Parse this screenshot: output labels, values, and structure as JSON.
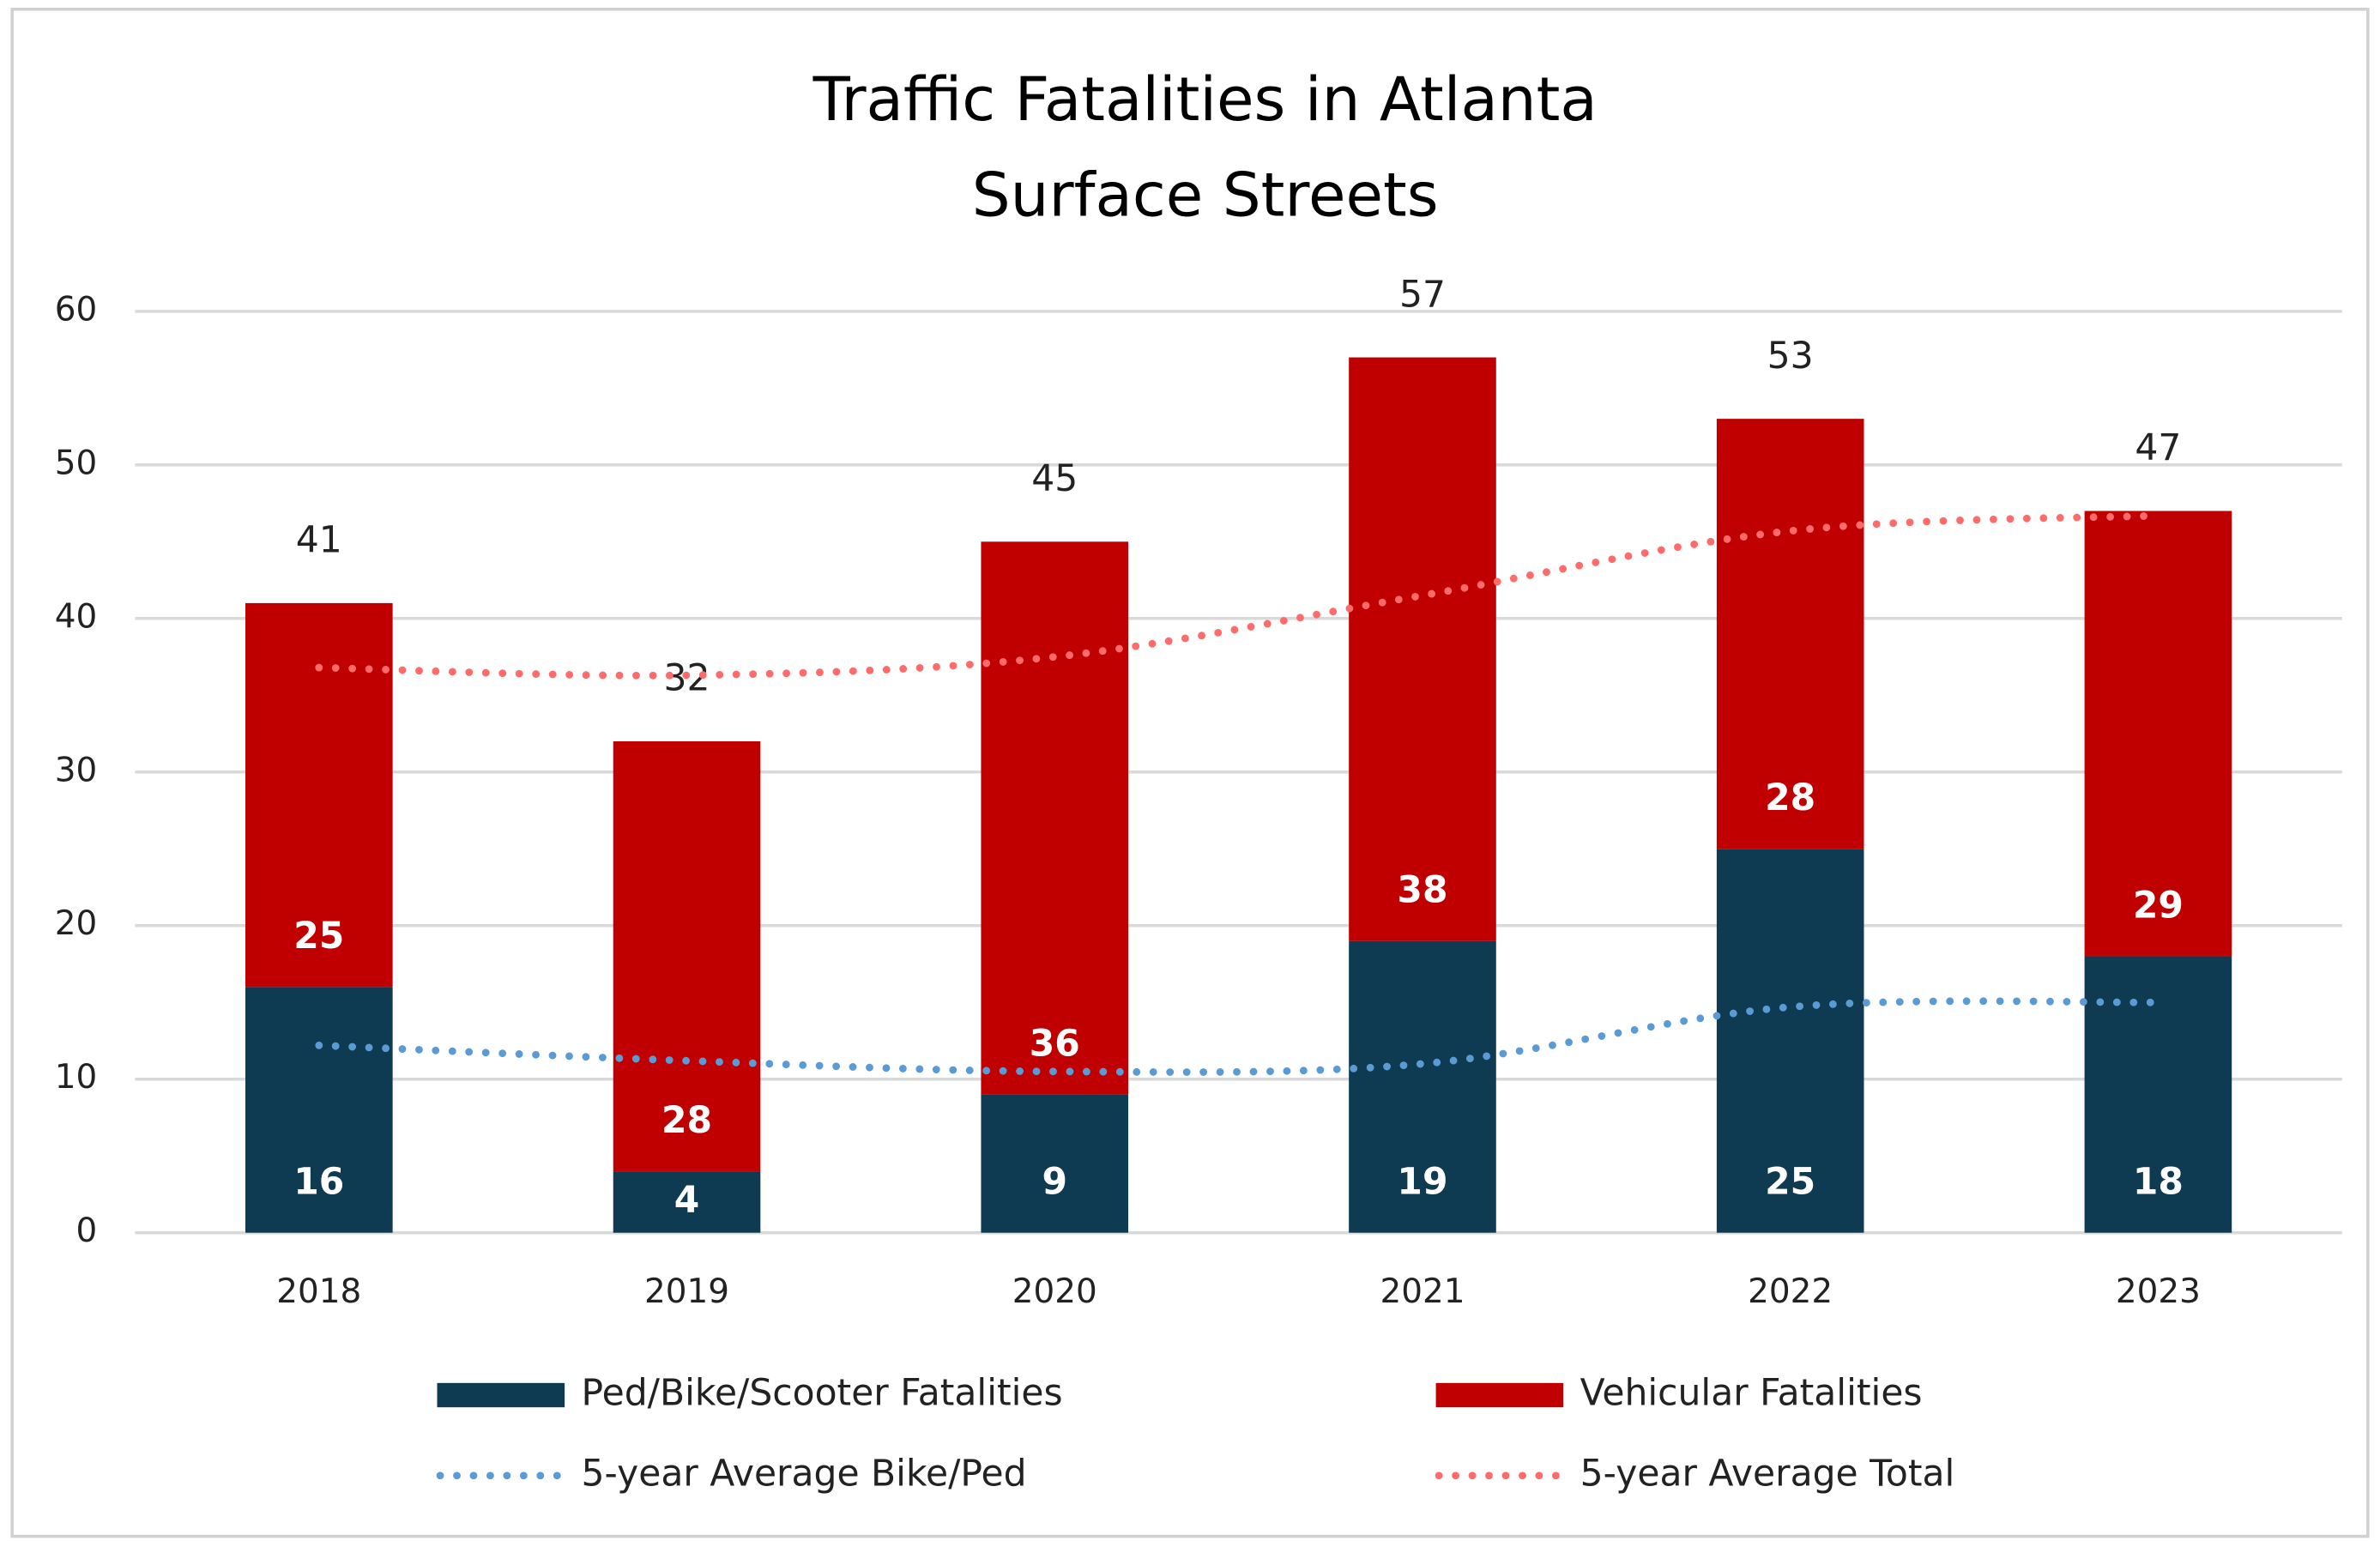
{
  "chart_data": {
    "type": "bar",
    "stacked": true,
    "title": [
      "Traffic Fatalities in Atlanta",
      "Surface Streets"
    ],
    "categories": [
      "2018",
      "2019",
      "2020",
      "2021",
      "2022",
      "2023"
    ],
    "series": [
      {
        "name": "Ped/Bike/Scooter Fatalities",
        "color": "#0e3a52",
        "values": [
          16,
          4,
          9,
          19,
          25,
          18
        ]
      },
      {
        "name": "Vehicular Fatalities",
        "color": "#c00000",
        "values": [
          25,
          28,
          36,
          38,
          28,
          29
        ]
      },
      {
        "name": "5-year Average Bike/Ped",
        "color": "#5b9bd5",
        "type": "line",
        "values": [
          12.2,
          11.2,
          10.5,
          11,
          14.7,
          15
        ]
      },
      {
        "name": "5-year Average Total",
        "color": "#ff6b6b",
        "type": "line",
        "values": [
          36.8,
          36.3,
          37.5,
          41.5,
          45.7,
          46.7
        ]
      }
    ],
    "totals": [
      41,
      32,
      45,
      57,
      53,
      47
    ],
    "ylim": [
      0,
      60
    ],
    "yticks": [
      0,
      10,
      20,
      30,
      40,
      50,
      60
    ],
    "grid": true
  }
}
